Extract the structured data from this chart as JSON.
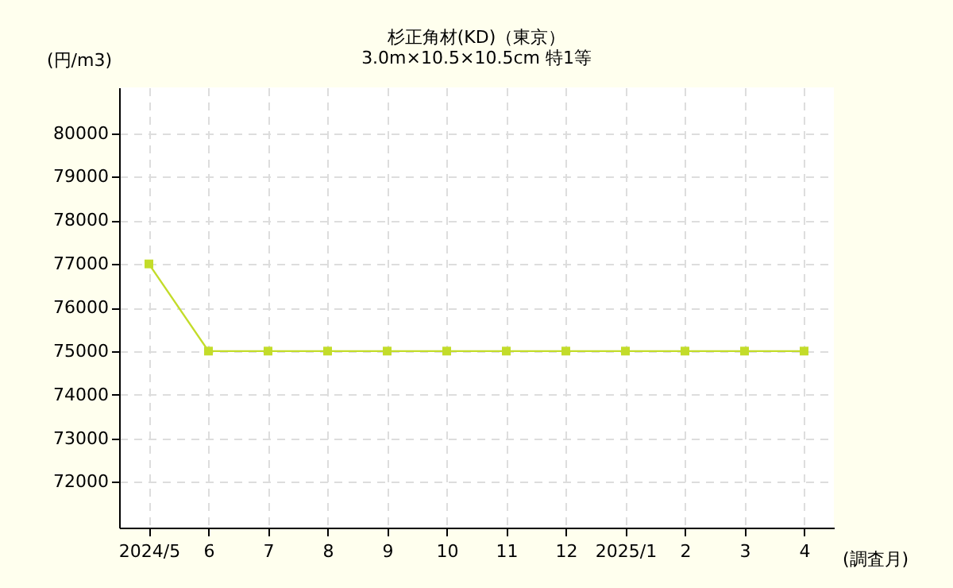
{
  "chart_data": {
    "type": "line",
    "title": "杉正角材(KD)（東京）",
    "subtitle": "3.0m×10.5×10.5cm 特1等",
    "xlabel": "(調査月)",
    "ylabel": "(円/m3)",
    "categories": [
      "2024/5",
      "6",
      "7",
      "8",
      "9",
      "10",
      "11",
      "12",
      "2025/1",
      "2",
      "3",
      "4"
    ],
    "series": [
      {
        "color": "#c3dc2a",
        "values": [
          77000,
          75000,
          75000,
          75000,
          75000,
          75000,
          75000,
          75000,
          75000,
          75000,
          75000,
          75000
        ]
      }
    ],
    "ylim": [
      70950,
      81050
    ],
    "yticks": [
      72000,
      73000,
      74000,
      75000,
      76000,
      77000,
      78000,
      79000,
      80000
    ],
    "grid": true,
    "marker": "square",
    "line_style": "solid"
  }
}
